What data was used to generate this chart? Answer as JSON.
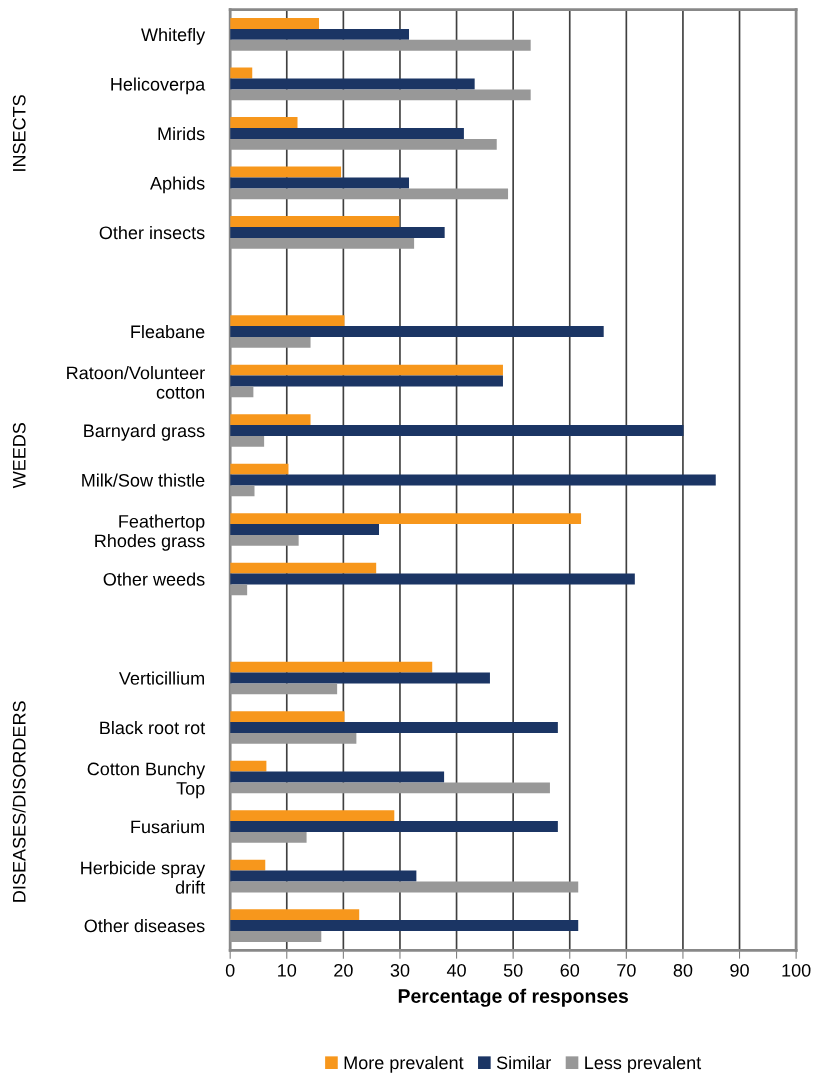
{
  "chart_data": {
    "type": "bar",
    "orientation": "horizontal",
    "xlabel": "Percentage of responses",
    "categories": [
      "Whitefly",
      "Helicoverpa",
      "Mirids",
      "Aphids",
      "Other insects",
      null,
      "Fleabane",
      "Ratoon/Volunteer\ncotton",
      "Barnyard grass",
      "Milk/Sow thistle",
      "Feathertop\nRhodes grass",
      "Other weeds",
      null,
      "Verticillium",
      "Black root rot",
      "Cotton Bunchy\nTop",
      "Fusarium",
      "Herbicide spray\ndrift",
      "Other diseases"
    ],
    "series": [
      {
        "name": "More prevalent",
        "color": "#f7971c",
        "values": [
          15.7,
          3.9,
          11.9,
          19.6,
          29.9,
          null,
          20.2,
          48.2,
          14.2,
          10.3,
          62.0,
          25.8,
          null,
          35.7,
          20.2,
          6.4,
          29.0,
          6.2,
          22.8
        ]
      },
      {
        "name": "Similar",
        "color": "#1b3564",
        "values": [
          31.6,
          43.2,
          41.3,
          31.6,
          37.9,
          null,
          66.0,
          48.2,
          80.1,
          85.8,
          26.3,
          71.5,
          null,
          45.9,
          57.9,
          37.8,
          57.9,
          32.9,
          61.5
        ]
      },
      {
        "name": "Less prevalent",
        "color": "#989898",
        "values": [
          53.1,
          53.1,
          47.1,
          49.1,
          32.5,
          null,
          14.2,
          4.1,
          6.0,
          4.3,
          12.1,
          3.0,
          null,
          18.9,
          22.3,
          56.5,
          13.5,
          61.5,
          16.1
        ]
      }
    ],
    "xlim": [
      0,
      100
    ],
    "xticks": [
      0,
      10,
      20,
      30,
      40,
      50,
      60,
      70,
      80,
      90,
      100
    ],
    "grid": "x",
    "legend": "bottom",
    "annotations": [
      "INSECTS",
      "WEEDS",
      "DISEASES/DISORDERS"
    ]
  }
}
